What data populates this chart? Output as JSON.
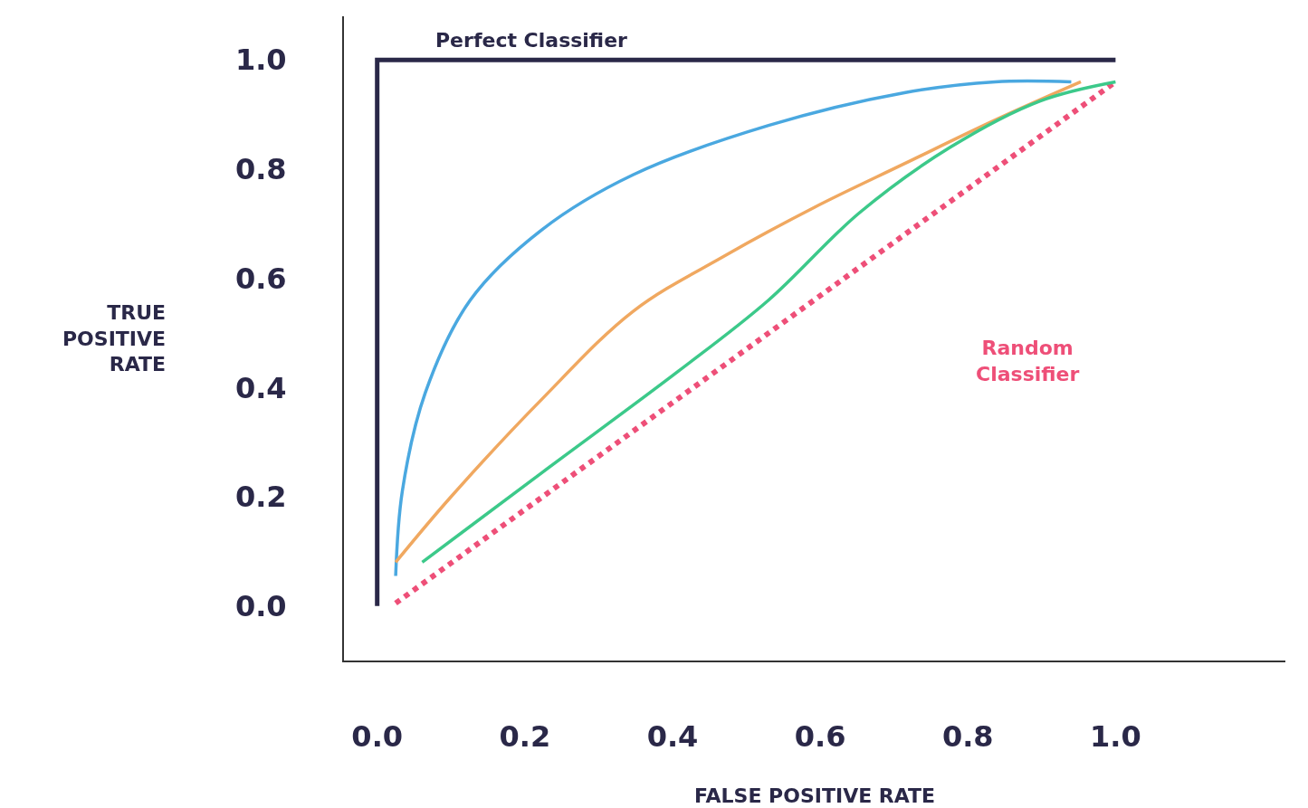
{
  "chart_data": {
    "type": "line",
    "xlabel": "FALSE POSITIVE RATE",
    "ylabel": "TRUE\nPOSITIVE\nRATE",
    "xlim": [
      -0.045,
      1.23
    ],
    "ylim": [
      -0.1,
      1.08
    ],
    "xticks": [
      {
        "value": 0,
        "label": "0.0"
      },
      0.2,
      0.4,
      0.6,
      0.8,
      {
        "value": 1,
        "label": "1.0"
      }
    ],
    "yticks": [
      {
        "value": 0,
        "label": "0.0"
      },
      0.2,
      0.4,
      0.6,
      0.8,
      {
        "value": 1,
        "label": "1.0"
      }
    ],
    "legend": false,
    "marker": "none",
    "series": [
      {
        "name": "Perfect Classifier",
        "color": "#2a2848",
        "x": [
          0,
          0,
          1
        ],
        "values": [
          0,
          1,
          1
        ]
      },
      {
        "name": "Random\nClassifier",
        "color": "#ee4f78",
        "line_style": "dotted",
        "x": [
          0.025,
          1.0
        ],
        "values": [
          0.005,
          0.96
        ]
      },
      {
        "color": "#4aa8e0",
        "x": [
          0.025,
          0.034,
          0.065,
          0.126,
          0.224,
          0.347,
          0.53,
          0.714,
          0.837,
          0.94
        ],
        "values": [
          0.055,
          0.21,
          0.39,
          0.56,
          0.69,
          0.79,
          0.88,
          0.94,
          0.96,
          0.96
        ]
      },
      {
        "color": "#f0a860",
        "x": [
          0.025,
          0.1,
          0.224,
          0.347,
          0.469,
          0.592,
          0.714,
          0.837,
          0.953
        ],
        "values": [
          0.08,
          0.2,
          0.38,
          0.54,
          0.64,
          0.73,
          0.81,
          0.89,
          0.96
        ]
      },
      {
        "color": "#3cc98a",
        "x": [
          0.061,
          0.224,
          0.408,
          0.53,
          0.653,
          0.776,
          0.898,
          1.0
        ],
        "values": [
          0.08,
          0.245,
          0.43,
          0.56,
          0.72,
          0.84,
          0.925,
          0.96
        ]
      }
    ]
  }
}
